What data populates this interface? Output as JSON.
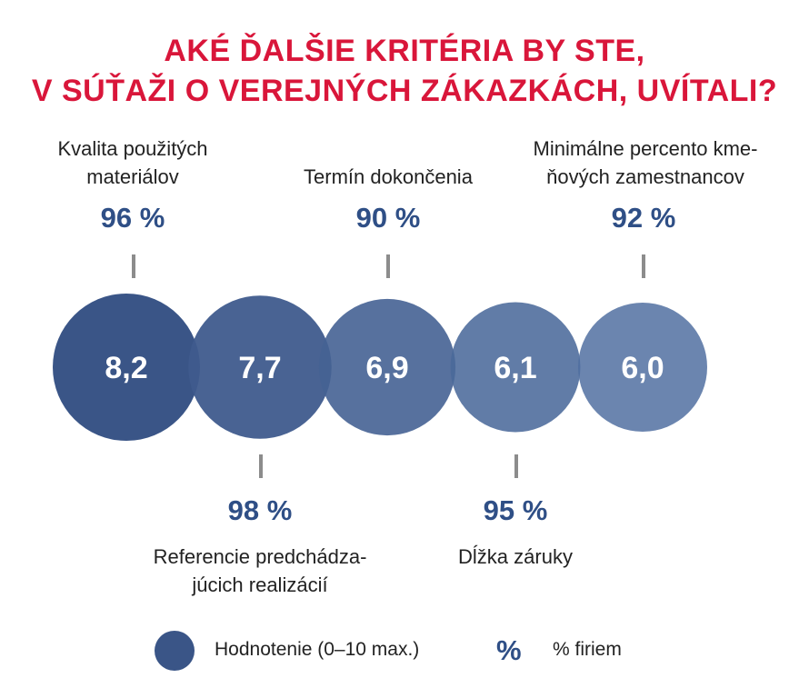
{
  "title": {
    "line1": "AKÉ ĎALŠIE KRITÉRIA BY STE,",
    "line2": "V SÚŤAŽI O VEREJNÝCH ZÁKAZKÁCH, UVÍTALI?"
  },
  "colors": {
    "title": "#d9163a",
    "percent_text": "#2f4f86",
    "bubble_dark": "#3a5587",
    "bubble_light": "#4f6ea0",
    "tick": "#8c8c8c"
  },
  "chart_data": {
    "type": "bubble",
    "items": [
      {
        "label_lines": [
          "Kvalita použitých",
          "materiálov"
        ],
        "rating": "8,2",
        "rating_value": 8.2,
        "percent": "96 %",
        "percent_value": 96,
        "label_position": "top"
      },
      {
        "label_lines": [
          "Referencie predchádza-",
          "júcich realizácií"
        ],
        "rating": "7,7",
        "rating_value": 7.7,
        "percent": "98 %",
        "percent_value": 98,
        "label_position": "bottom"
      },
      {
        "label_lines": [
          "Termín dokončenia"
        ],
        "rating": "6,9",
        "rating_value": 6.9,
        "percent": "90 %",
        "percent_value": 90,
        "label_position": "top"
      },
      {
        "label_lines": [
          "Dĺžka záruky"
        ],
        "rating": "6,1",
        "rating_value": 6.1,
        "percent": "95 %",
        "percent_value": 95,
        "label_position": "bottom"
      },
      {
        "label_lines": [
          "Minimálne percento kme-",
          "ňových zamestnancov"
        ],
        "rating": "6,0",
        "rating_value": 6.0,
        "percent": "92 %",
        "percent_value": 92,
        "label_position": "top"
      }
    ]
  },
  "legend": {
    "rating_label": "Hodnotenie (0–10 max.)",
    "percent_symbol": "%",
    "percent_label": "% firiem"
  }
}
